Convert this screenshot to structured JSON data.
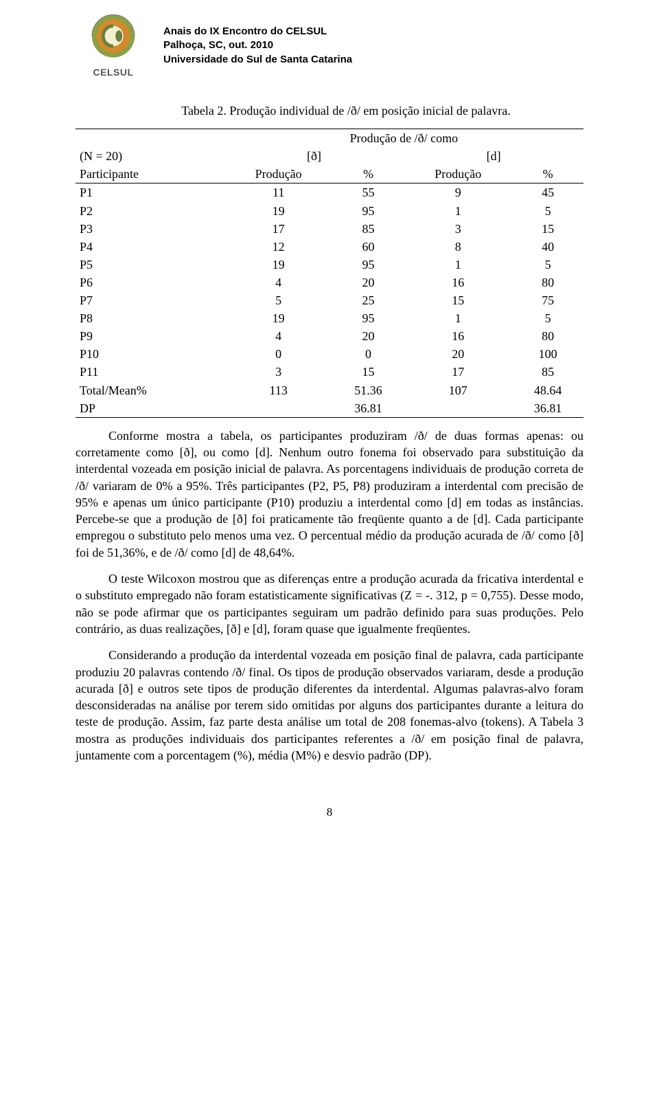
{
  "header": {
    "logo_label": "CELSUL",
    "inst_line1": "Anais do IX Encontro do CELSUL",
    "inst_line2": "Palhoça, SC, out. 2010",
    "inst_line3": "Universidade do Sul de Santa Catarina"
  },
  "caption": "Tabela 2. Produção individual de /ð/ em posição inicial de palavra.",
  "table": {
    "group_header": "Produção de /ð/ como",
    "n_label": "(N = 20)",
    "col_eth": "[ð]",
    "col_d": "[d]",
    "subheaders": [
      "Participante",
      "Produção",
      "%",
      "Produção",
      "%"
    ],
    "rows": [
      [
        "P1",
        "11",
        "55",
        "9",
        "45"
      ],
      [
        "P2",
        "19",
        "95",
        "1",
        "5"
      ],
      [
        "P3",
        "17",
        "85",
        "3",
        "15"
      ],
      [
        "P4",
        "12",
        "60",
        "8",
        "40"
      ],
      [
        "P5",
        "19",
        "95",
        "1",
        "5"
      ],
      [
        "P6",
        "4",
        "20",
        "16",
        "80"
      ],
      [
        "P7",
        "5",
        "25",
        "15",
        "75"
      ],
      [
        "P8",
        "19",
        "95",
        "1",
        "5"
      ],
      [
        "P9",
        "4",
        "20",
        "16",
        "80"
      ],
      [
        "P10",
        "0",
        "0",
        "20",
        "100"
      ],
      [
        "P11",
        "3",
        "15",
        "17",
        "85"
      ]
    ],
    "totals": [
      "Total/Mean%",
      "113",
      "51.36",
      "107",
      "48.64"
    ],
    "dp": [
      "DP",
      "",
      "36.81",
      "",
      "36.81"
    ]
  },
  "paras": {
    "p1": "Conforme mostra a tabela, os participantes produziram /ð/ de duas formas apenas: ou corretamente como [ð], ou como [d]. Nenhum outro fonema foi observado para substituição da interdental vozeada em posição inicial de palavra. As porcentagens individuais de produção correta de /ð/ variaram de 0% a 95%. Três participantes (P2, P5, P8) produziram a interdental com precisão de 95% e apenas um único participante (P10) produziu a interdental como [d] em todas as instâncias. Percebe-se que a produção de [ð] foi praticamente tão freqüente quanto a de [d].  Cada participante empregou o substituto pelo menos uma vez. O percentual médio da produção acurada de /ð/ como [ð] foi de 51,36%, e de /ð/ como [d] de 48,64%.",
    "p2": "O teste Wilcoxon mostrou que as diferenças entre a produção acurada da fricativa interdental e o substituto empregado não foram estatisticamente significativas (Z = -. 312, p = 0,755). Desse modo, não se pode afirmar que os participantes seguiram um padrão definido para suas produções. Pelo contrário, as duas realizações, [ð] e [d], foram quase que igualmente freqüentes.",
    "p3": "Considerando a produção da interdental vozeada em posição final de palavra, cada participante produziu 20 palavras contendo /ð/ final. Os tipos de produção observados variaram, desde a produção acurada [ð] e outros sete tipos de produção diferentes da interdental. Algumas palavras-alvo foram desconsideradas na análise por terem sido omitidas por alguns dos participantes durante a leitura do teste de produção. Assim, faz parte desta análise um total de 208 fonemas-alvo (tokens). A Tabela 3 mostra as produções individuais dos participantes referentes a /ð/ em posição final de palavra, juntamente com a porcentagem (%), média (M%) e desvio padrão (DP)."
  },
  "footer": "8",
  "colors": {
    "logo_outer": "#8aa04a",
    "logo_mid": "#d28a2e",
    "logo_inner": "#f3f0d2",
    "logo_arc": "#6b7f3c",
    "text": "#000000",
    "bg": "#ffffff"
  }
}
